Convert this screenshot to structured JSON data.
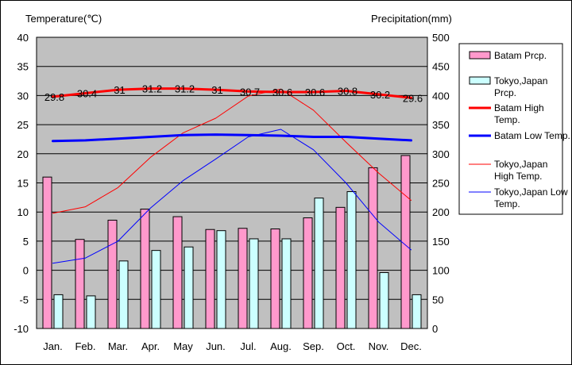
{
  "chart_data": {
    "type": "bar",
    "left_axis_title": "Temperature(℃)",
    "right_axis_title": "Precipitation(mm)",
    "categories": [
      "Jan.",
      "Feb.",
      "Mar.",
      "Apr.",
      "May",
      "Jun.",
      "Jul.",
      "Aug.",
      "Sep.",
      "Oct.",
      "Nov.",
      "Dec."
    ],
    "y_left": {
      "min": -10,
      "max": 40,
      "ticks": [
        -10,
        -5,
        0,
        5,
        10,
        15,
        20,
        25,
        30,
        35,
        40
      ]
    },
    "y_right": {
      "min": 0,
      "max": 500,
      "ticks": [
        0,
        50,
        100,
        150,
        200,
        250,
        300,
        350,
        400,
        450,
        500
      ]
    },
    "grid": true,
    "legend_position": "right",
    "series": [
      {
        "name": "Batam Prcp.",
        "kind": "bar",
        "axis": "right",
        "color": "#ff99cc",
        "values": [
          260,
          153,
          186,
          205,
          192,
          170,
          172,
          171,
          190,
          208,
          276,
          297
        ]
      },
      {
        "name": "Tokyo,Japan Prcp.",
        "kind": "bar",
        "axis": "right",
        "color": "#ccffff",
        "values": [
          58,
          56,
          116,
          134,
          140,
          168,
          154,
          154,
          224,
          235,
          96,
          58
        ]
      },
      {
        "name": "Batam High Temp.",
        "kind": "line",
        "axis": "left",
        "color": "#ff0000",
        "width": 3,
        "values": [
          29.8,
          30.4,
          31.0,
          31.2,
          31.2,
          31.0,
          30.7,
          30.6,
          30.6,
          30.8,
          30.2,
          29.6
        ],
        "labels": [
          "29.8",
          "30.4",
          "31",
          "31.2",
          "31.2",
          "31",
          "30.7",
          "30.6",
          "30.6",
          "30.8",
          "30.2",
          "29.6"
        ]
      },
      {
        "name": "Batam Low Temp.",
        "kind": "line",
        "axis": "left",
        "color": "#0000ff",
        "width": 3,
        "values": [
          22.2,
          22.3,
          22.6,
          22.9,
          23.2,
          23.3,
          23.2,
          23.1,
          22.9,
          22.9,
          22.6,
          22.3
        ]
      },
      {
        "name": "Tokyo,Japan High Temp.",
        "kind": "line",
        "axis": "left",
        "color": "#ff0000",
        "width": 1,
        "values": [
          9.8,
          10.9,
          14.2,
          19.4,
          23.6,
          26.1,
          29.9,
          31.1,
          27.5,
          22.0,
          16.7,
          12.0
        ]
      },
      {
        "name": "Tokyo,Japan Low Temp.",
        "kind": "line",
        "axis": "left",
        "color": "#0000ff",
        "width": 1,
        "values": [
          1.2,
          2.1,
          5.0,
          10.7,
          15.4,
          19.1,
          22.9,
          24.2,
          20.7,
          15.0,
          8.3,
          3.5
        ]
      }
    ]
  }
}
